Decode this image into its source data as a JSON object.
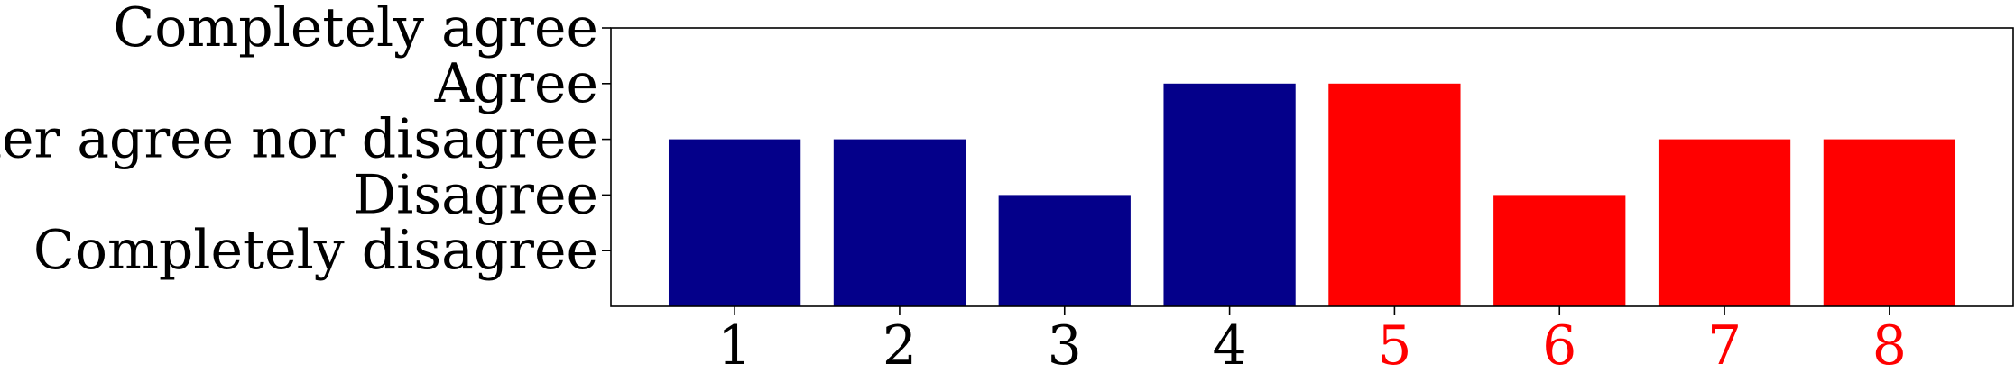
{
  "chart_data": {
    "type": "bar",
    "categories": [
      "1",
      "2",
      "3",
      "4",
      "5",
      "6",
      "7",
      "8"
    ],
    "values": [
      3,
      3,
      2,
      4,
      4,
      2,
      3,
      3
    ],
    "colors": [
      "#04008a",
      "#04008a",
      "#04008a",
      "#04008a",
      "#ff0000",
      "#ff0000",
      "#ff0000",
      "#ff0000"
    ],
    "category_label_colors": [
      "#000000",
      "#000000",
      "#000000",
      "#000000",
      "#ff0000",
      "#ff0000",
      "#ff0000",
      "#ff0000"
    ],
    "y_ticks": [
      {
        "value": 1,
        "label": "Completely disagree"
      },
      {
        "value": 2,
        "label": "Disagree"
      },
      {
        "value": 3,
        "label": "Neither agree nor disagree"
      },
      {
        "value": 4,
        "label": "Agree"
      },
      {
        "value": 5,
        "label": "Completely agree"
      }
    ],
    "ylim": [
      0,
      5
    ],
    "title": "",
    "xlabel": "",
    "ylabel": "",
    "grid": false,
    "legend": "none"
  }
}
